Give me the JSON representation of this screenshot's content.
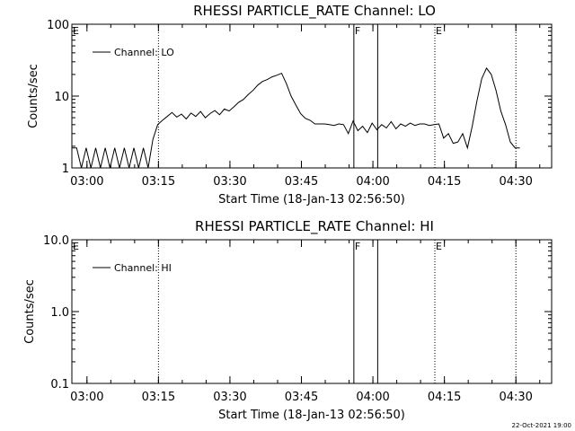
{
  "chart_data": [
    {
      "type": "line",
      "title": "RHESSI PARTICLE_RATE Channel: LO",
      "xlabel": "Start Time (18-Jan-13 02:56:50)",
      "ylabel": "Counts/sec",
      "yscale": "log",
      "ylim": [
        1,
        100
      ],
      "xlim": [
        "02:56:50",
        "04:37:30"
      ],
      "x_ticks": [
        "03:00",
        "03:15",
        "03:30",
        "03:45",
        "04:00",
        "04:15",
        "04:30"
      ],
      "y_ticks": [
        "1",
        "10",
        "100"
      ],
      "grid": false,
      "legend_position": "top-left",
      "series": [
        {
          "name": "Channel: LO",
          "color": "#000000",
          "x_minutes_after_start": [
            0,
            1,
            2,
            3,
            4,
            5,
            6,
            7,
            8,
            9,
            10,
            11,
            12,
            13,
            14,
            15,
            16,
            17,
            18,
            19,
            20,
            21,
            22,
            23,
            24,
            25,
            26,
            27,
            28,
            29,
            30,
            31,
            32,
            33,
            34,
            35,
            36,
            37,
            38,
            39,
            40,
            41,
            42,
            43,
            44,
            45,
            46,
            47,
            48,
            49,
            50,
            51,
            52,
            53,
            54,
            55,
            56,
            57,
            58,
            59,
            60,
            61,
            62,
            63,
            64,
            65,
            66,
            67,
            68,
            69,
            70,
            71,
            72,
            73,
            74,
            75,
            76,
            77,
            78,
            79,
            80,
            81,
            82,
            83,
            84,
            85,
            86,
            87,
            88,
            89,
            90,
            91,
            92,
            93,
            94
          ],
          "y": [
            1.9,
            1.9,
            1.0,
            1.9,
            1.0,
            1.9,
            1.0,
            1.9,
            1.0,
            1.9,
            1.0,
            1.9,
            1.0,
            1.9,
            1.0,
            1.9,
            1.0,
            2.5,
            4.0,
            4.6,
            5.2,
            5.9,
            5.1,
            5.6,
            4.8,
            5.8,
            5.2,
            6.1,
            5.0,
            5.7,
            6.3,
            5.5,
            6.6,
            6.2,
            7.1,
            8.2,
            9.0,
            10.5,
            12.0,
            14.2,
            16.0,
            17.0,
            18.5,
            19.5,
            20.8,
            15.0,
            10.0,
            7.5,
            5.7,
            4.9,
            4.6,
            4.1,
            4.1,
            4.1,
            4.0,
            3.9,
            4.1,
            4.0,
            3.0,
            4.5,
            3.3,
            3.8,
            3.1,
            4.2,
            3.4,
            4.0,
            3.6,
            4.4,
            3.5,
            4.1,
            3.8,
            4.2,
            3.9,
            4.1,
            4.1,
            3.9,
            4.0,
            4.1,
            2.6,
            3.0,
            2.2,
            2.3,
            3.0,
            1.9,
            3.8,
            8.6,
            17.5,
            24.5,
            20.0,
            12.0,
            6.2,
            4.0,
            2.3,
            1.9,
            1.9
          ],
          "values_note": ""
        }
      ],
      "vertical_markers": [
        {
          "time": "03:15",
          "style": "dotted",
          "label": ""
        },
        {
          "time": "03:56",
          "style": "solid",
          "label": "F"
        },
        {
          "time": "04:01",
          "style": "solid",
          "label": ""
        },
        {
          "time": "04:13",
          "style": "dotted",
          "label": "E"
        },
        {
          "time": "04:30",
          "style": "dotted",
          "label": ""
        }
      ],
      "corner_label": "E"
    },
    {
      "type": "line",
      "title": "RHESSI PARTICLE_RATE Channel: HI",
      "xlabel": "Start Time (18-Jan-13 02:56:50)",
      "ylabel": "Counts/sec",
      "yscale": "log",
      "ylim": [
        0.1,
        10
      ],
      "xlim": [
        "02:56:50",
        "04:37:30"
      ],
      "x_ticks": [
        "03:00",
        "03:15",
        "03:30",
        "03:45",
        "04:00",
        "04:15",
        "04:30"
      ],
      "y_ticks": [
        "0.1",
        "1.0",
        "10.0"
      ],
      "grid": false,
      "legend_position": "top-left",
      "series": [
        {
          "name": "Channel: HI",
          "color": "#000000",
          "y": []
        }
      ],
      "vertical_markers": [
        {
          "time": "03:15",
          "style": "dotted",
          "label": ""
        },
        {
          "time": "03:56",
          "style": "solid",
          "label": "F"
        },
        {
          "time": "04:01",
          "style": "solid",
          "label": ""
        },
        {
          "time": "04:13",
          "style": "dotted",
          "label": "E"
        },
        {
          "time": "04:30",
          "style": "dotted",
          "label": ""
        }
      ],
      "corner_label": "E"
    }
  ],
  "footer": {
    "timestamp": "22-Oct-2021 19:00"
  }
}
